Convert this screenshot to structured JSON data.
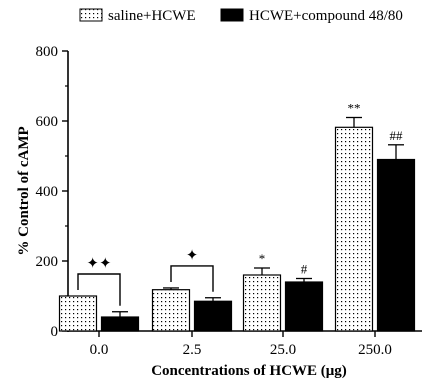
{
  "chart_data": {
    "type": "bar",
    "categories": [
      "0.0",
      "2.5",
      "25.0",
      "250.0"
    ],
    "series": [
      {
        "name": "saline+HCWE",
        "pattern": "dotted",
        "values": [
          100,
          118,
          160,
          582
        ],
        "errors": [
          0,
          5,
          20,
          28
        ],
        "annotations": [
          "",
          "",
          "*",
          "**"
        ]
      },
      {
        "name": "HCWE+compound 48/80",
        "pattern": "solid",
        "values": [
          40,
          85,
          140,
          490
        ],
        "errors": [
          15,
          10,
          10,
          42
        ],
        "annotations": [
          "",
          "",
          "#",
          "##"
        ]
      }
    ],
    "brackets": [
      {
        "category_index": 0,
        "label": "✦✦"
      },
      {
        "category_index": 1,
        "label": "✦"
      }
    ],
    "xlabel": "Concentrations of HCWE (μg)",
    "ylabel": "% Control of cAMP",
    "ylim": [
      0,
      800
    ],
    "yticks": [
      "0",
      "200",
      "400",
      "600",
      "800"
    ],
    "grid": false,
    "legend_position": "top",
    "colors": {
      "fill_solid": "#000000",
      "fill_dotted_bg": "#ffffff",
      "dot": "#000000",
      "axis": "#000000"
    }
  }
}
